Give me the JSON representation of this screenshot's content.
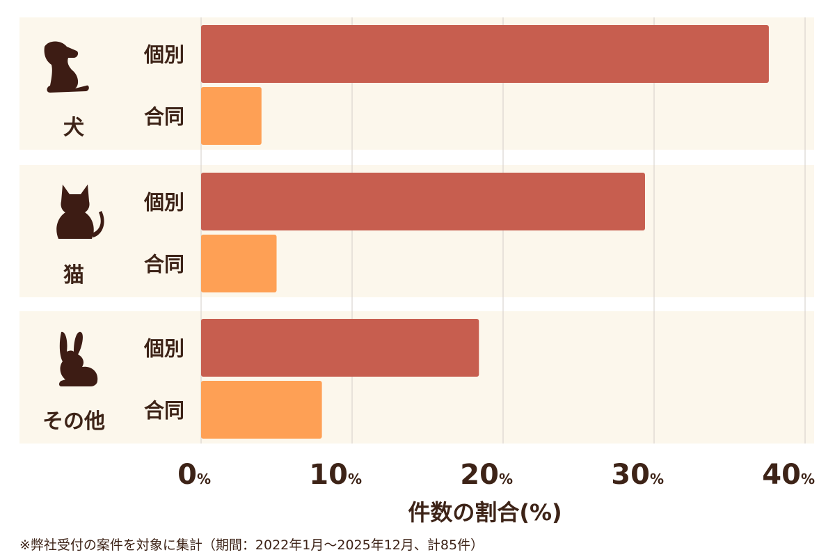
{
  "colors": {
    "panel_bg": "#fcf7ec",
    "individual": "#c75e4f",
    "joint": "#fea055",
    "text": "#3d2317",
    "grid": "#d3cec7"
  },
  "chart_data": {
    "type": "bar",
    "orientation": "horizontal",
    "groups": [
      {
        "label": "犬",
        "icon": "dog-icon"
      },
      {
        "label": "猫",
        "icon": "cat-icon"
      },
      {
        "label": "その他",
        "icon": "rabbit-icon"
      }
    ],
    "series": [
      {
        "name": "個別",
        "color": "#c75e4f",
        "values": [
          37.6,
          29.4,
          18.4
        ]
      },
      {
        "name": "合同",
        "color": "#fea055",
        "values": [
          4.0,
          5.0,
          8.0
        ]
      }
    ],
    "xlim": [
      0,
      40
    ],
    "xticks": [
      0,
      10,
      20,
      30,
      40
    ],
    "tick_unit": "%",
    "xlabel": "件数の割合(%)",
    "grid": true
  },
  "footnote": "※弊社受付の案件を対象に集計（期間：2022年1月～2025年12月、計85件）"
}
